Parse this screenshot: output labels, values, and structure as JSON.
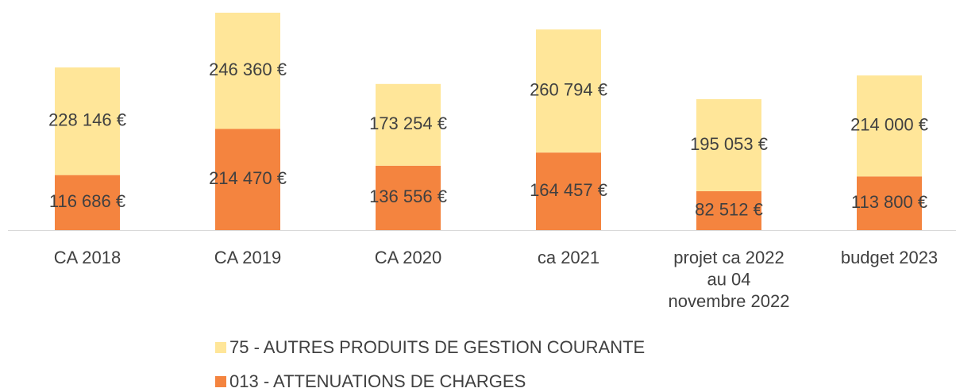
{
  "chart_data": {
    "type": "stacked_bar",
    "categories": [
      "CA 2018",
      "CA 2019",
      "CA 2020",
      "ca 2021",
      "projet ca 2022\nau 04\nnovembre 2022",
      "budget 2023"
    ],
    "series": [
      {
        "name": "75 - AUTRES PRODUITS DE GESTION COURANTE",
        "color": "#ffe699",
        "values": [
          228146,
          246360,
          173254,
          260794,
          195053,
          214000
        ],
        "value_labels": [
          "228 146 €",
          "246 360 €",
          "173 254 €",
          "260 794 €",
          "195 053 €",
          "214 000 €"
        ]
      },
      {
        "name": "013 - ATTENUATIONS DE CHARGES",
        "color": "#f4843f",
        "values": [
          116686,
          214470,
          136556,
          164457,
          82512,
          113800
        ],
        "value_labels": [
          "116 686 €",
          "214 470 €",
          "136 556 €",
          "164 457 €",
          "82 512 €",
          "113 800 €"
        ]
      }
    ]
  }
}
